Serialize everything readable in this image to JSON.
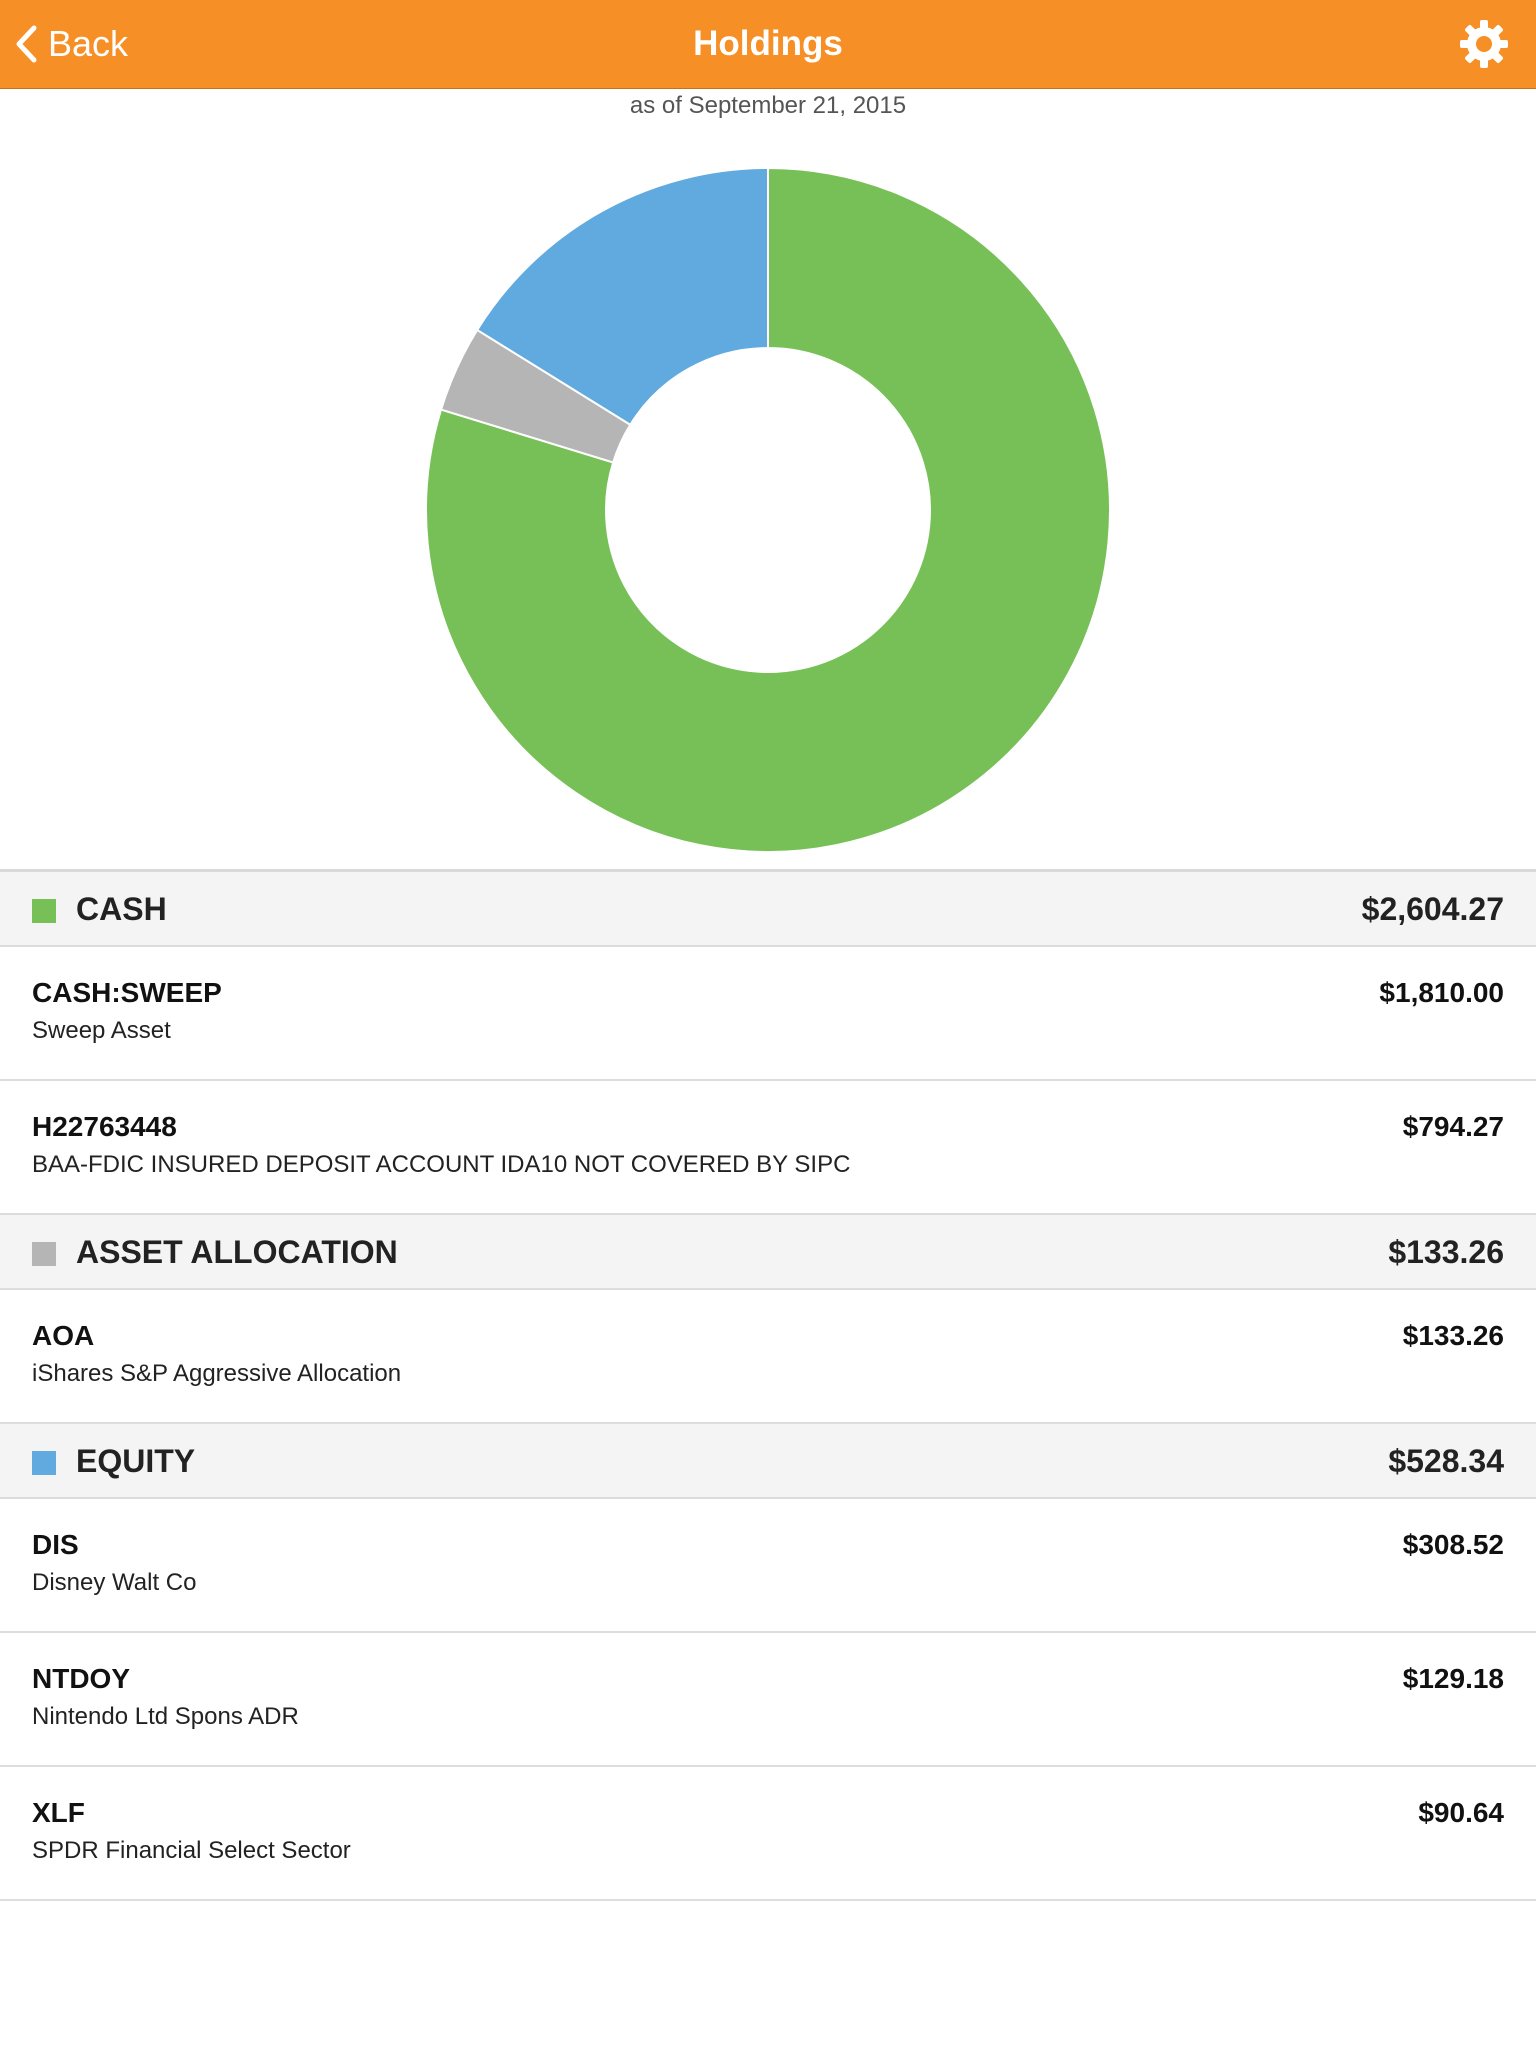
{
  "nav": {
    "back_label": "Back",
    "title": "Holdings"
  },
  "as_of": "as of September 21, 2015",
  "colors": {
    "navbar": "#f68f25",
    "cash": "#77c057",
    "asset_allocation": "#b5b5b5",
    "equity": "#60aadf"
  },
  "chart_data": {
    "type": "pie",
    "style": "donut",
    "labels": [
      "CASH",
      "ASSET ALLOCATION",
      "EQUITY"
    ],
    "values": [
      2604.27,
      133.26,
      528.34
    ],
    "colors": [
      "#77c057",
      "#b5b5b5",
      "#60aadf"
    ]
  },
  "sections": [
    {
      "title": "CASH",
      "total": "$2,604.27",
      "color": "#77c057",
      "holdings": [
        {
          "symbol": "CASH:SWEEP",
          "description": "Sweep Asset",
          "value": "$1,810.00"
        },
        {
          "symbol": "H22763448",
          "description": "BAA-FDIC INSURED DEPOSIT ACCOUNT IDA10 NOT COVERED BY SIPC",
          "value": "$794.27"
        }
      ]
    },
    {
      "title": "ASSET ALLOCATION",
      "total": "$133.26",
      "color": "#b5b5b5",
      "holdings": [
        {
          "symbol": "AOA",
          "description": "iShares S&P Aggressive Allocation",
          "value": "$133.26"
        }
      ]
    },
    {
      "title": "EQUITY",
      "total": "$528.34",
      "color": "#60aadf",
      "holdings": [
        {
          "symbol": "DIS",
          "description": "Disney Walt Co",
          "value": "$308.52"
        },
        {
          "symbol": "NTDOY",
          "description": "Nintendo Ltd Spons ADR",
          "value": "$129.18"
        },
        {
          "symbol": "XLF",
          "description": "SPDR Financial Select Sector",
          "value": "$90.64"
        }
      ]
    }
  ]
}
